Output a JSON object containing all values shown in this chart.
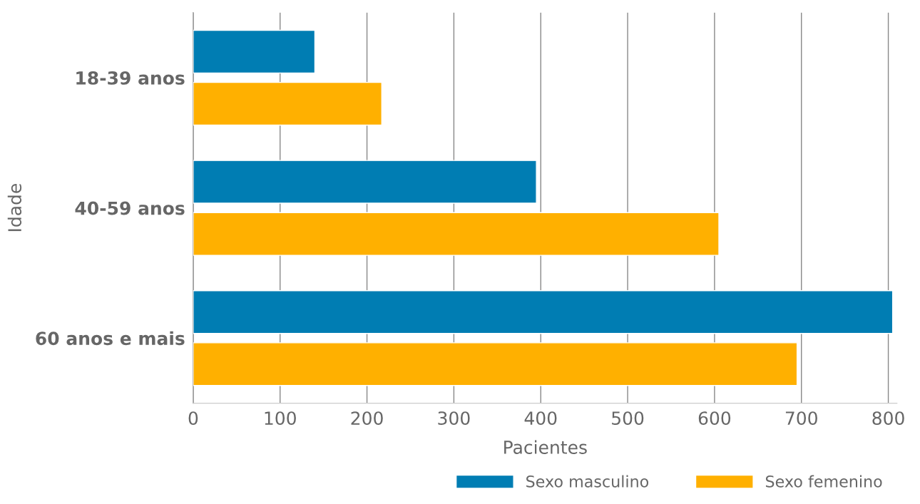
{
  "chart_data": {
    "type": "bar",
    "orientation": "horizontal",
    "xlabel": "Pacientes",
    "ylabel": "Idade",
    "categories": [
      "18-39 anos",
      "40-59 anos",
      "60 anos e mais"
    ],
    "series": [
      {
        "name": "Sexo masculino",
        "color": "#007db3",
        "values": [
          140,
          395,
          805
        ]
      },
      {
        "name": "Sexo femenino",
        "color": "#ffb000",
        "values": [
          217,
          605,
          695
        ]
      }
    ],
    "xlim": [
      0,
      810
    ],
    "xticks": [
      0,
      100,
      200,
      300,
      400,
      500,
      600,
      700,
      800
    ],
    "grid": "x",
    "legend": "bottom"
  }
}
